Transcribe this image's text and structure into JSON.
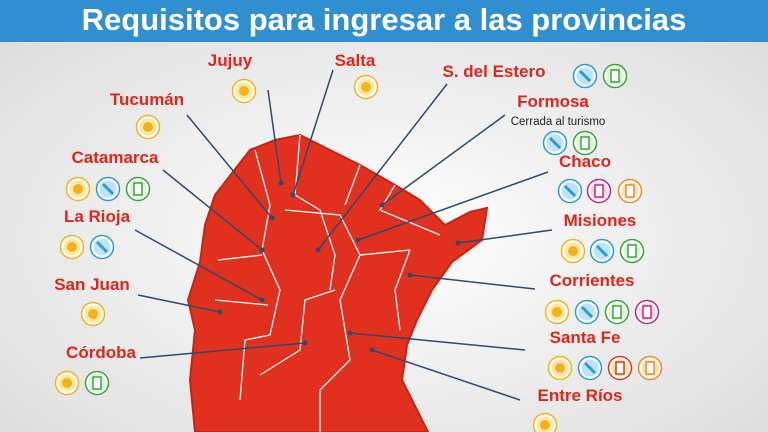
{
  "header": {
    "title": "Requisitos para ingresar a las provincias"
  },
  "provinces": [
    {
      "name": "Jujuy"
    },
    {
      "name": "Salta"
    },
    {
      "name": "S. del Estero"
    },
    {
      "name": "Formosa",
      "note": "Cerrada al turismo"
    },
    {
      "name": "Tucumán"
    },
    {
      "name": "Catamarca"
    },
    {
      "name": "Chaco"
    },
    {
      "name": "La Rioja"
    },
    {
      "name": "Misiones"
    },
    {
      "name": "San Juan"
    },
    {
      "name": "Corrientes"
    },
    {
      "name": "Córdoba"
    },
    {
      "name": "Santa Fe"
    },
    {
      "name": "Entre Ríos"
    }
  ]
}
